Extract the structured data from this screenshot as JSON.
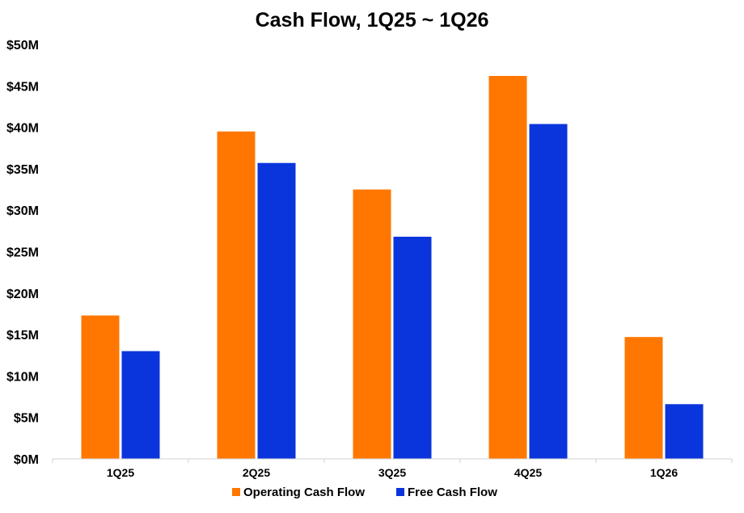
{
  "chart_data": {
    "type": "bar",
    "title": "Cash Flow, 1Q25 ~ 1Q26",
    "xlabel": "",
    "ylabel": "",
    "categories": [
      "1Q25",
      "2Q25",
      "3Q25",
      "4Q25",
      "1Q26"
    ],
    "series": [
      {
        "name": "Operating Cash Flow",
        "color": "#FF7700",
        "values": [
          17.3,
          39.5,
          32.5,
          46.2,
          14.7
        ]
      },
      {
        "name": "Free Cash Flow",
        "color": "#0A35DC",
        "values": [
          13.0,
          35.7,
          26.8,
          40.4,
          6.6
        ]
      }
    ],
    "ylim": [
      0,
      50
    ],
    "yticks": [
      0,
      5,
      10,
      15,
      20,
      25,
      30,
      35,
      40,
      45,
      50
    ],
    "ytick_labels": [
      "$0M",
      "$5M",
      "$10M",
      "$15M",
      "$20M",
      "$25M",
      "$30M",
      "$35M",
      "$40M",
      "$45M",
      "$50M"
    ],
    "grid": false,
    "legend_position": "bottom"
  }
}
